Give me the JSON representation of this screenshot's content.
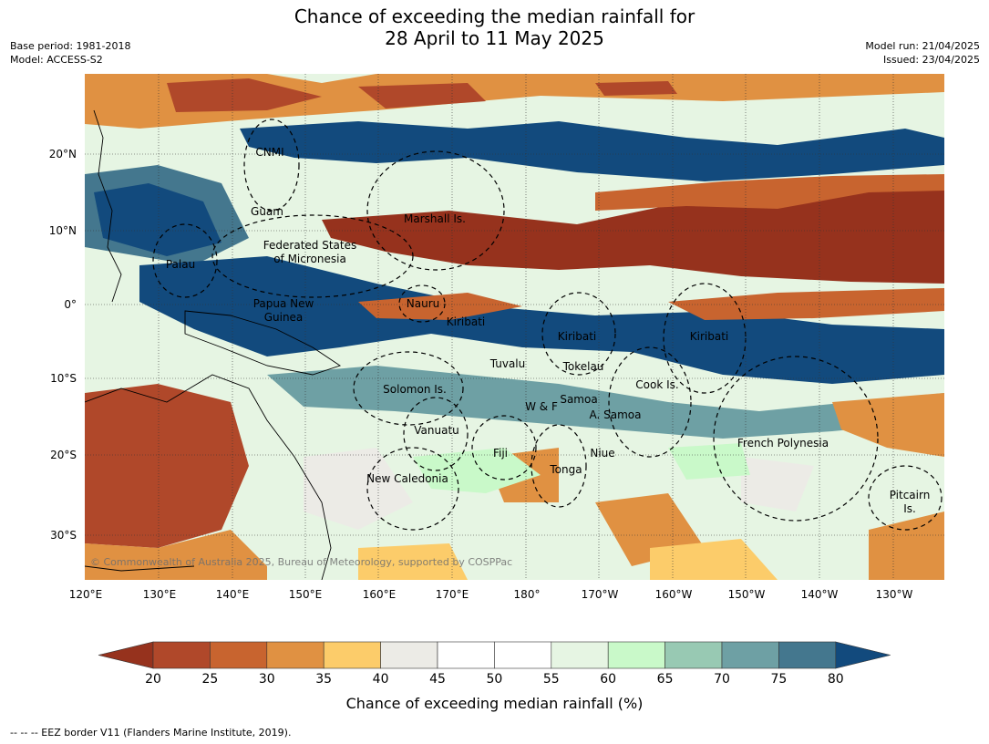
{
  "title_line1": "Chance of exceeding the median rainfall for",
  "title_line2": "28 April to 11 May 2025",
  "base_period": "Base period: 1981-2018",
  "model": "Model: ACCESS-S2",
  "model_run": "Model run: 21/04/2025",
  "issued": "Issued: 23/04/2025",
  "latitude_ticks": [
    "20°N",
    "10°N",
    "0°",
    "10°S",
    "20°S",
    "30°S"
  ],
  "longitude_ticks": [
    "120°E",
    "130°E",
    "140°E",
    "150°E",
    "160°E",
    "170°E",
    "180°",
    "170°W",
    "160°W",
    "150°W",
    "140°W",
    "130°W"
  ],
  "region_labels": {
    "cnmi": "CNMI",
    "guam": "Guam",
    "marshall": "Marshall Is.",
    "fsm_1": "Federated States",
    "fsm_2": "of Micronesia",
    "palau": "Palau",
    "png_1": "Papua New",
    "png_2": "Guinea",
    "nauru": "Nauru",
    "kiribati_w": "Kiribati",
    "kiribati_c": "Kiribati",
    "kiribati_e": "Kiribati",
    "tuvalu": "Tuvalu",
    "tokelau": "Tokelau",
    "cook": "Cook Is.",
    "solomon": "Solomon Is.",
    "wf": "W & F",
    "samoa": "Samoa",
    "asamoa": "A. Samoa",
    "vanuatu": "Vanuatu",
    "fiji": "Fiji",
    "niue": "Niue",
    "tonga": "Tonga",
    "french_polynesia": "French Polynesia",
    "pitcairn_1": "Pitcairn",
    "pitcairn_2": "Is.",
    "new_caledonia": "New Caledonia"
  },
  "copyright": "© Commonwealth of Australia 2025, Bureau of Meteorology, supported by COSPPac",
  "colorbar": {
    "ticks": [
      "20",
      "25",
      "30",
      "35",
      "40",
      "45",
      "50",
      "55",
      "60",
      "65",
      "70",
      "75",
      "80"
    ],
    "colors": [
      "#96321d",
      "#b0482a",
      "#c8642f",
      "#e09142",
      "#fccc6a",
      "#ecebe6",
      "#ffffff",
      "#ffffff",
      "#e6f5e3",
      "#c9f9c9",
      "#98c9b3",
      "#6ea0a4",
      "#44778e",
      "#124a7d"
    ],
    "label": "Chance of exceeding median rainfall (%)"
  },
  "footnote": "--  --  -- EEZ border V11 (Flanders Marine Institute, 2019)."
}
